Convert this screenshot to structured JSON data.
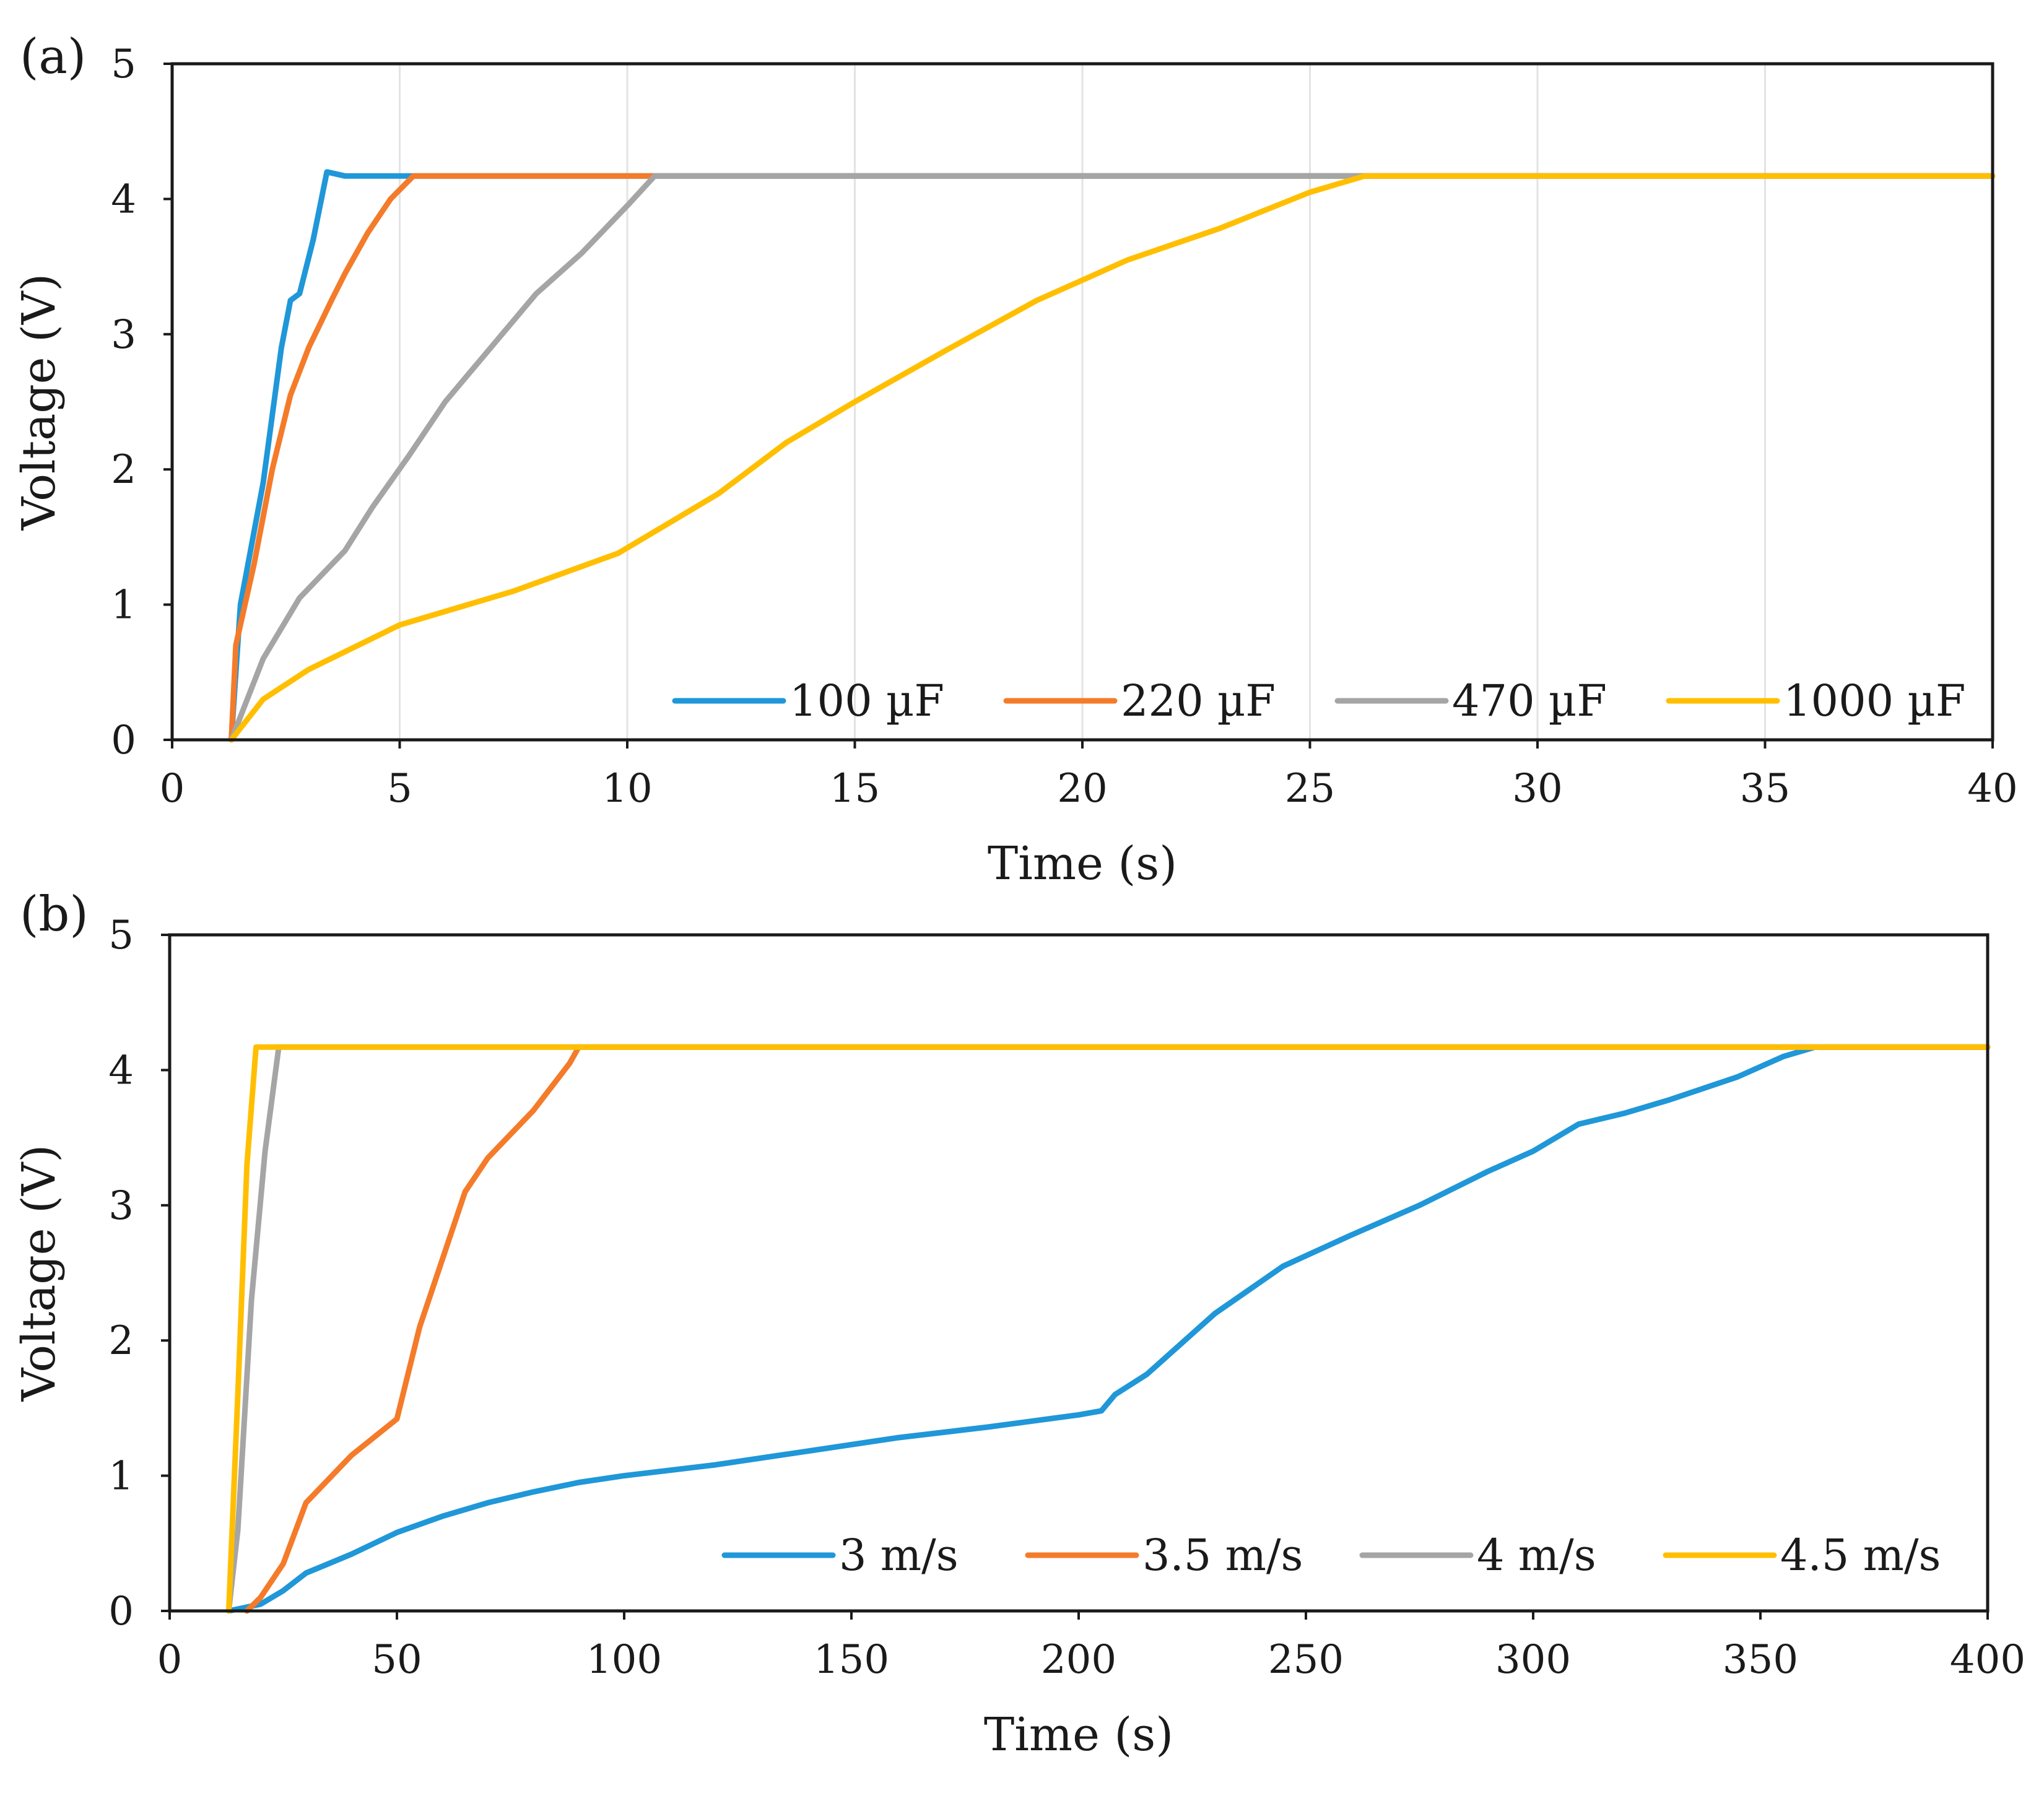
{
  "chart_data": [
    {
      "type": "line",
      "panel_label": "(a)",
      "xlabel": "Time (s)",
      "ylabel": "Voltage (V)",
      "xlim": [
        0,
        40
      ],
      "ylim": [
        0,
        5
      ],
      "xticks": [
        0,
        5,
        10,
        15,
        20,
        25,
        30,
        35,
        40
      ],
      "yticks": [
        0,
        1,
        2,
        3,
        4,
        5
      ],
      "grid": "vertical",
      "legend_position": "bottom-right",
      "series": [
        {
          "name": "100 µF",
          "color": "#1f97d8",
          "x": [
            1.3,
            1.5,
            2.0,
            2.4,
            2.6,
            2.8,
            3.1,
            3.4,
            3.8,
            40
          ],
          "y": [
            0.0,
            1.0,
            1.9,
            2.9,
            3.25,
            3.3,
            3.7,
            4.2,
            4.17,
            4.17
          ]
        },
        {
          "name": "220 µF",
          "color": "#f47b2a",
          "x": [
            1.3,
            1.4,
            1.8,
            2.2,
            2.6,
            3.0,
            3.5,
            3.8,
            4.3,
            4.8,
            5.3,
            40
          ],
          "y": [
            0.0,
            0.7,
            1.3,
            2.0,
            2.55,
            2.9,
            3.25,
            3.45,
            3.75,
            4.0,
            4.17,
            4.17
          ]
        },
        {
          "name": "470 µF",
          "color": "#a5a5a5",
          "x": [
            1.3,
            2.0,
            2.8,
            3.8,
            4.4,
            5.2,
            6.0,
            7.0,
            8.0,
            9.0,
            10.0,
            10.6,
            40
          ],
          "y": [
            0.0,
            0.6,
            1.05,
            1.4,
            1.72,
            2.1,
            2.5,
            2.9,
            3.3,
            3.6,
            3.95,
            4.17,
            4.17
          ]
        },
        {
          "name": "1000 µF",
          "color": "#ffbf00",
          "x": [
            1.3,
            2.0,
            3.0,
            5.0,
            7.5,
            9.8,
            11.0,
            12.0,
            13.5,
            15.0,
            17.0,
            19.0,
            21.0,
            23.0,
            25.0,
            26.2,
            40
          ],
          "y": [
            0.0,
            0.3,
            0.52,
            0.85,
            1.1,
            1.38,
            1.62,
            1.82,
            2.2,
            2.5,
            2.88,
            3.25,
            3.55,
            3.78,
            4.05,
            4.17,
            4.17
          ]
        }
      ]
    },
    {
      "type": "line",
      "panel_label": "(b)",
      "xlabel": "Time (s)",
      "ylabel": "Voltage (V)",
      "xlim": [
        0,
        400
      ],
      "ylim": [
        0,
        5
      ],
      "xticks": [
        0,
        50,
        100,
        150,
        200,
        250,
        300,
        350,
        400
      ],
      "yticks": [
        0,
        1,
        2,
        3,
        4,
        5
      ],
      "grid": "none",
      "legend_position": "bottom-right",
      "series": [
        {
          "name": "3 m/s",
          "color": "#1f97d8",
          "x": [
            13,
            20,
            25,
            30,
            40,
            50,
            60,
            70,
            80,
            90,
            100,
            120,
            140,
            160,
            180,
            200,
            205,
            208,
            215,
            230,
            245,
            260,
            275,
            290,
            300,
            310,
            320,
            330,
            345,
            355,
            362,
            400
          ],
          "y": [
            0.0,
            0.05,
            0.15,
            0.28,
            0.42,
            0.58,
            0.7,
            0.8,
            0.88,
            0.95,
            1.0,
            1.08,
            1.18,
            1.28,
            1.36,
            1.45,
            1.48,
            1.6,
            1.75,
            2.2,
            2.55,
            2.78,
            3.0,
            3.25,
            3.4,
            3.6,
            3.68,
            3.78,
            3.95,
            4.1,
            4.17,
            4.17
          ]
        },
        {
          "name": "3.5 m/s",
          "color": "#f47b2a",
          "x": [
            17,
            20,
            25,
            30,
            40,
            50,
            55,
            60,
            65,
            70,
            80,
            88,
            90,
            400
          ],
          "y": [
            0.0,
            0.1,
            0.35,
            0.8,
            1.15,
            1.42,
            2.1,
            2.6,
            3.1,
            3.35,
            3.7,
            4.05,
            4.17,
            4.17
          ]
        },
        {
          "name": "4 m/s",
          "color": "#a5a5a5",
          "x": [
            13,
            15,
            18,
            21,
            24,
            400
          ],
          "y": [
            0.0,
            0.6,
            2.3,
            3.4,
            4.17,
            4.17
          ]
        },
        {
          "name": "4.5 m/s",
          "color": "#ffbf00",
          "x": [
            13,
            15,
            17,
            19,
            400
          ],
          "y": [
            0.0,
            1.6,
            3.3,
            4.17,
            4.17
          ]
        }
      ]
    }
  ]
}
